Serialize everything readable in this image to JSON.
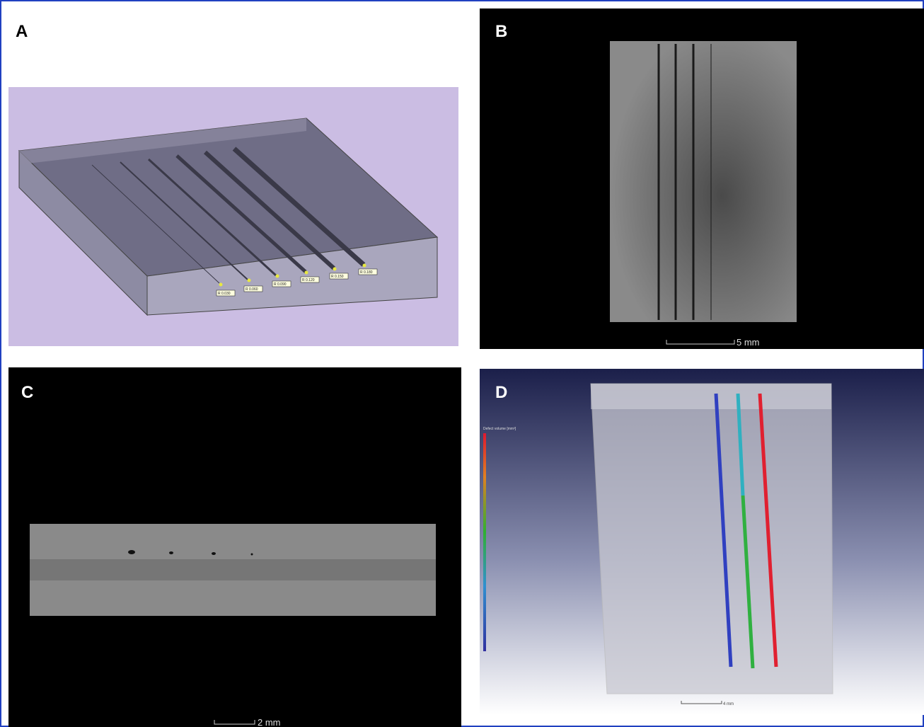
{
  "panels": [
    {
      "label": "A",
      "groove_labels": [
        "R 0.030",
        "R 0.060",
        "R 0.090",
        "R 0.120",
        "R 0.150",
        "R 0.180"
      ]
    },
    {
      "label": "B",
      "scale": "5 mm"
    },
    {
      "label": "C",
      "scale": "2 mm"
    },
    {
      "label": "D",
      "scale": "4 mm",
      "legend_title": "Defect volume [mm³]"
    }
  ]
}
